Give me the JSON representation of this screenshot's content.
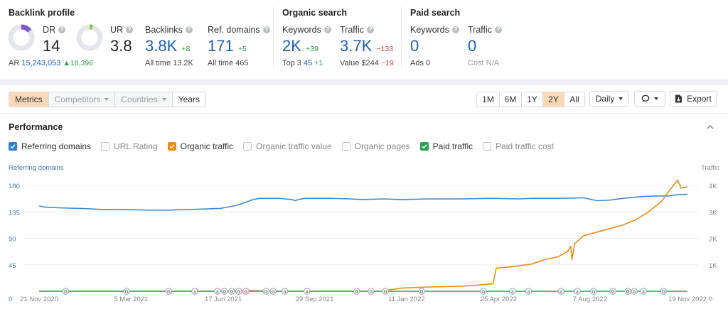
{
  "backlink_profile": {
    "title": "Backlink profile",
    "dr": {
      "label": "DR",
      "value": "14",
      "gauge_fraction": 0.14,
      "gauge_color": "#7b5cc7"
    },
    "ur": {
      "label": "UR",
      "value": "3.8",
      "gauge_fraction": 0.04,
      "gauge_color": "#8bc34a"
    },
    "ar": {
      "label": "AR",
      "value": "15,243,053",
      "delta": "18,396"
    },
    "backlinks": {
      "label": "Backlinks",
      "value": "3.8K",
      "delta": "+8",
      "all_time_label": "All time",
      "all_time_value": "13.2K"
    },
    "ref_domains": {
      "label": "Ref. domains",
      "value": "171",
      "delta": "+5",
      "all_time_label": "All time",
      "all_time_value": "465"
    }
  },
  "organic_search": {
    "title": "Organic search",
    "keywords": {
      "label": "Keywords",
      "value": "2K",
      "delta": "+39",
      "top3_label": "Top 3",
      "top3_value": "45",
      "top3_delta": "+1"
    },
    "traffic": {
      "label": "Traffic",
      "value": "3.7K",
      "delta": "−133",
      "value_label": "Value",
      "value_value": "$244",
      "value_delta": "−19"
    }
  },
  "paid_search": {
    "title": "Paid search",
    "keywords": {
      "label": "Keywords",
      "value": "0",
      "ads_label": "Ads",
      "ads_value": "0"
    },
    "traffic": {
      "label": "Traffic",
      "value": "0",
      "cost_label": "Cost",
      "cost_value": "N/A"
    }
  },
  "tabs": [
    {
      "label": "Metrics",
      "state": "active"
    },
    {
      "label": "Competitors",
      "state": "disabled",
      "dropdown": true
    },
    {
      "label": "Countries",
      "state": "disabled",
      "dropdown": true
    },
    {
      "label": "Years",
      "state": "normal"
    }
  ],
  "ranges": [
    {
      "label": "1M",
      "active": false
    },
    {
      "label": "6M",
      "active": false
    },
    {
      "label": "1Y",
      "active": false
    },
    {
      "label": "2Y",
      "active": true
    },
    {
      "label": "All",
      "active": false
    }
  ],
  "interval": {
    "label": "Daily"
  },
  "export_label": "Export",
  "performance": {
    "title": "Performance",
    "legend": [
      {
        "label": "Referring domains",
        "checked": true,
        "color": "#2d7fd3"
      },
      {
        "label": "URL Rating",
        "checked": false
      },
      {
        "label": "Organic traffic",
        "checked": true,
        "color": "#f08a12"
      },
      {
        "label": "Organic traffic value",
        "checked": false
      },
      {
        "label": "Organic pages",
        "checked": false
      },
      {
        "label": "Paid traffic",
        "checked": true,
        "color": "#2ba352"
      },
      {
        "label": "Paid traffic cost",
        "checked": false
      }
    ]
  },
  "chart_data": {
    "type": "line",
    "ylabel_left": "Referring domains",
    "ylabel_right": "Traffic",
    "y_left_ticks": [
      0,
      45,
      90,
      135,
      180
    ],
    "y_right_ticks": [
      "0",
      "1K",
      "2K",
      "3K",
      "4K"
    ],
    "ylim_left": [
      0,
      180
    ],
    "ylim_right": [
      0,
      4000
    ],
    "x_ticks": [
      {
        "label": "21 Nov 2020",
        "t": 0.0
      },
      {
        "label": "5 Mar 2021",
        "t": 0.1418
      },
      {
        "label": "17 Jun 2021",
        "t": 0.2841
      },
      {
        "label": "29 Sep 2021",
        "t": 0.4249
      },
      {
        "label": "11 Jan 2022",
        "t": 0.5667
      },
      {
        "label": "25 Apr 2022",
        "t": 0.7089
      },
      {
        "label": "7 Aug 2022",
        "t": 0.8496
      },
      {
        "label": "19 Nov 2022",
        "t": 1.0
      }
    ],
    "series": [
      {
        "name": "Referring domains",
        "axis": "left",
        "color": "#3d8ad2",
        "points": [
          [
            0.0,
            145
          ],
          [
            0.01,
            143
          ],
          [
            0.03,
            142
          ],
          [
            0.06,
            141
          ],
          [
            0.1,
            139
          ],
          [
            0.13,
            139
          ],
          [
            0.17,
            138
          ],
          [
            0.2,
            138
          ],
          [
            0.23,
            139
          ],
          [
            0.26,
            140
          ],
          [
            0.28,
            141
          ],
          [
            0.29,
            143
          ],
          [
            0.3,
            145
          ],
          [
            0.31,
            148
          ],
          [
            0.32,
            152
          ],
          [
            0.33,
            156
          ],
          [
            0.34,
            158
          ],
          [
            0.37,
            158
          ],
          [
            0.38,
            157
          ],
          [
            0.39,
            156
          ],
          [
            0.395,
            154
          ],
          [
            0.4,
            156
          ],
          [
            0.41,
            158
          ],
          [
            0.45,
            158
          ],
          [
            0.48,
            157
          ],
          [
            0.5,
            156
          ],
          [
            0.53,
            157
          ],
          [
            0.56,
            156
          ],
          [
            0.6,
            157
          ],
          [
            0.65,
            157
          ],
          [
            0.7,
            158
          ],
          [
            0.74,
            157
          ],
          [
            0.76,
            158
          ],
          [
            0.8,
            158
          ],
          [
            0.84,
            159
          ],
          [
            0.86,
            154
          ],
          [
            0.88,
            155
          ],
          [
            0.9,
            158
          ],
          [
            0.93,
            161
          ],
          [
            0.95,
            162
          ],
          [
            0.97,
            162
          ],
          [
            0.985,
            164
          ],
          [
            1.0,
            165
          ]
        ]
      },
      {
        "name": "Organic traffic",
        "axis": "right",
        "color": "#f08a12",
        "points": [
          [
            0.0,
            0
          ],
          [
            0.31,
            0
          ],
          [
            0.32,
            30
          ],
          [
            0.34,
            20
          ],
          [
            0.35,
            0
          ],
          [
            0.53,
            0
          ],
          [
            0.54,
            50
          ],
          [
            0.56,
            120
          ],
          [
            0.6,
            160
          ],
          [
            0.65,
            190
          ],
          [
            0.68,
            240
          ],
          [
            0.7,
            280
          ],
          [
            0.705,
            870
          ],
          [
            0.73,
            930
          ],
          [
            0.76,
            1030
          ],
          [
            0.78,
            1200
          ],
          [
            0.8,
            1300
          ],
          [
            0.815,
            1500
          ],
          [
            0.82,
            1700
          ],
          [
            0.822,
            1200
          ],
          [
            0.826,
            1800
          ],
          [
            0.84,
            2100
          ],
          [
            0.87,
            2300
          ],
          [
            0.9,
            2500
          ],
          [
            0.92,
            2700
          ],
          [
            0.94,
            3000
          ],
          [
            0.96,
            3400
          ],
          [
            0.975,
            3900
          ],
          [
            0.985,
            4200
          ],
          [
            0.99,
            3900
          ],
          [
            1.0,
            3950
          ]
        ]
      },
      {
        "name": "Paid traffic",
        "axis": "right",
        "color": "#2ba352",
        "points": [
          [
            0.0,
            0
          ],
          [
            1.0,
            0
          ]
        ]
      }
    ],
    "annotations": {
      "type": "event-markers",
      "items": [
        {
          "t": 0.041,
          "label": "G"
        },
        {
          "t": 0.135,
          "label": "G"
        },
        {
          "t": 0.2,
          "label": "G"
        },
        {
          "t": 0.24,
          "label": "a"
        },
        {
          "t": 0.275,
          "label": "a"
        },
        {
          "t": 0.286,
          "label": "G"
        },
        {
          "t": 0.297,
          "label": "G"
        },
        {
          "t": 0.308,
          "label": "G"
        },
        {
          "t": 0.319,
          "label": "G"
        },
        {
          "t": 0.35,
          "label": "G"
        },
        {
          "t": 0.361,
          "label": "G"
        },
        {
          "t": 0.379,
          "label": "a"
        },
        {
          "t": 0.413,
          "label": "a"
        },
        {
          "t": 0.49,
          "label": "G"
        },
        {
          "t": 0.512,
          "label": "G"
        },
        {
          "t": 0.534,
          "label": "G"
        },
        {
          "t": 0.59,
          "label": "G"
        },
        {
          "t": 0.685,
          "label": "G"
        },
        {
          "t": 0.73,
          "label": "a"
        },
        {
          "t": 0.755,
          "label": "a"
        },
        {
          "t": 0.805,
          "label": "a"
        },
        {
          "t": 0.83,
          "label": "a"
        },
        {
          "t": 0.855,
          "label": "G"
        },
        {
          "t": 0.885,
          "label": "G"
        },
        {
          "t": 0.908,
          "label": "G"
        },
        {
          "t": 0.918,
          "label": "G"
        },
        {
          "t": 0.932,
          "label": "a"
        },
        {
          "t": 0.963,
          "label": "G"
        }
      ]
    }
  }
}
